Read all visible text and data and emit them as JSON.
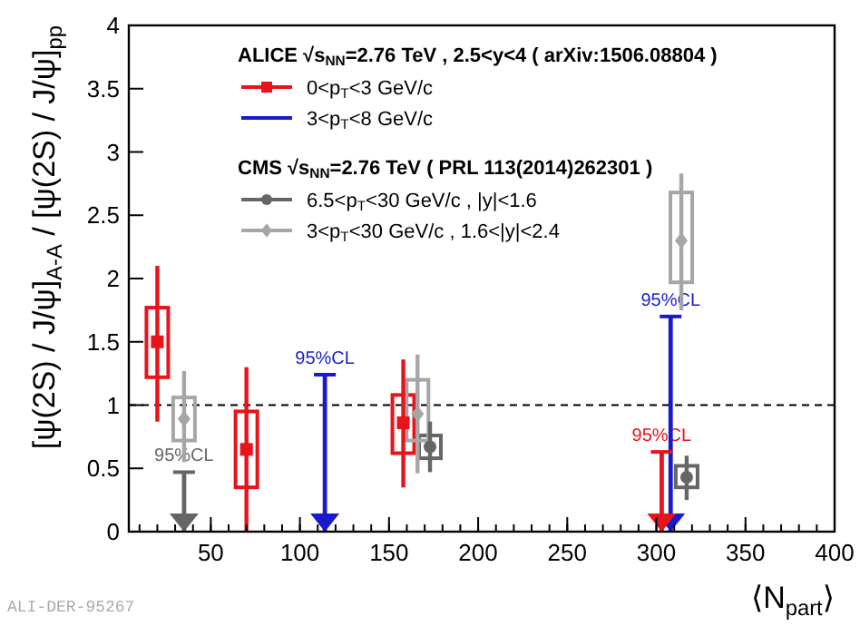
{
  "chart_data": {
    "type": "scatter",
    "xlabel": "⟨N$_{part}$⟩",
    "ylabel": "[ψ(2S) / J/ψ]$_{A-A}$ / [ψ(2S) / J/ψ]$_{pp}$",
    "xlim": [
      4,
      400
    ],
    "xticks": [
      50,
      100,
      150,
      200,
      250,
      300,
      350,
      400
    ],
    "ylim": [
      0,
      4
    ],
    "yticks": [
      0,
      0.5,
      1,
      1.5,
      2,
      2.5,
      3,
      3.5,
      4
    ],
    "legend": "top",
    "grid": false,
    "ref_lines": [
      {
        "axis": "y",
        "value": 1,
        "line_style": "dashed",
        "color": "#000000"
      }
    ],
    "annotations": [
      "ALICE √s$_{NN}$=2.76 TeV , 2.5<y<4  ( arXiv:1506.08804 )",
      "CMS √s$_{NN}$=2.76 TeV ( PRL 113(2014)262301 )",
      {
        "text": "95%CL",
        "x": 35,
        "y": 0.47
      },
      {
        "text": "95%CL",
        "x": 114,
        "y": 1.24
      },
      {
        "text": "95%CL",
        "x": 303,
        "y": 0.63
      },
      {
        "text": "95%CL",
        "x": 308,
        "y": 1.7
      },
      "ALI-DER-95267"
    ],
    "series": [
      {
        "name": "0<p$_{T}$<3 GeV/c",
        "marker": "square",
        "color": "#e8131b",
        "x": [
          20,
          70,
          158
        ],
        "values": [
          1.5,
          0.65,
          0.86
        ],
        "errors": [
          [
            0.87,
            2.1
          ],
          [
            0,
            1.3
          ],
          [
            0.35,
            1.36
          ]
        ]
      },
      {
        "name": "3<p$_{T}$<8 GeV/c",
        "type": "bar",
        "color": "#1a1acc",
        "x": [
          114,
          308
        ],
        "values": [
          1.24,
          1.7
        ]
      },
      {
        "name": "6.5<p$_{T}$<30 GeV/c , |y|<1.6",
        "marker": "circle",
        "color": "#666666",
        "x": [
          173,
          317
        ],
        "values": [
          0.67,
          0.43
        ],
        "errors": [
          [
            0.47,
            0.87
          ],
          [
            0.25,
            0.6
          ]
        ]
      },
      {
        "name": "3<p$_{T}$<30 GeV/c , 1.6<|y|<2.4",
        "marker": "diamond",
        "color": "#a6a6a6",
        "x": [
          35,
          166,
          314
        ],
        "values": [
          0.89,
          0.93,
          2.3
        ],
        "errors": [
          [
            0.55,
            1.27
          ],
          [
            0.46,
            1.4
          ],
          [
            1.75,
            2.83
          ]
        ]
      },
      {
        "type": "bar",
        "color": "#666666",
        "x": [
          35
        ],
        "values": [
          0.47
        ]
      },
      {
        "type": "bar",
        "color": "#e8131b",
        "x": [
          20,
          70,
          158
        ],
        "base": [
          1.22,
          0.35,
          0.62
        ],
        "values": [
          0.55,
          0.6,
          0.46
        ]
      },
      {
        "type": "bar",
        "color": "#e8131b",
        "x": [
          303
        ],
        "values": [
          0.63
        ]
      },
      {
        "type": "bar",
        "color": "#666666",
        "x": [
          173,
          317
        ],
        "base": [
          0.58,
          0.35
        ],
        "values": [
          0.18,
          0.17
        ]
      },
      {
        "type": "bar",
        "color": "#a6a6a6",
        "x": [
          35,
          166,
          314
        ],
        "base": [
          0.72,
          0.72,
          1.97
        ],
        "values": [
          0.34,
          0.48,
          0.71
        ]
      }
    ]
  }
}
